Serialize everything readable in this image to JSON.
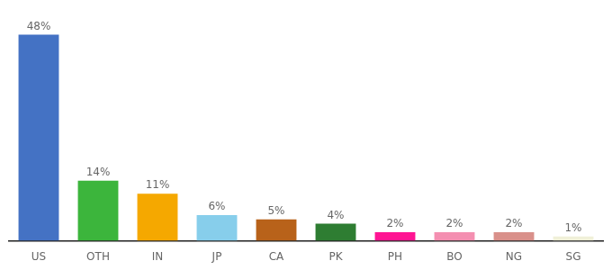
{
  "chart_data": {
    "type": "bar",
    "categories": [
      "US",
      "OTH",
      "IN",
      "JP",
      "CA",
      "PK",
      "PH",
      "BO",
      "NG",
      "SG"
    ],
    "values": [
      48,
      14,
      11,
      6,
      5,
      4,
      2,
      2,
      2,
      1
    ],
    "value_labels": [
      "48%",
      "14%",
      "11%",
      "6%",
      "5%",
      "4%",
      "2%",
      "2%",
      "2%",
      "1%"
    ],
    "colors": [
      "#4472c4",
      "#3cb53c",
      "#f5a800",
      "#87ceeb",
      "#b8621a",
      "#2e7d32",
      "#ff1493",
      "#f48fb1",
      "#d9908a",
      "#f0f0d8"
    ],
    "ylim": [
      0,
      54
    ],
    "data_labels": true,
    "tick_labels": "x",
    "grid": false
  }
}
